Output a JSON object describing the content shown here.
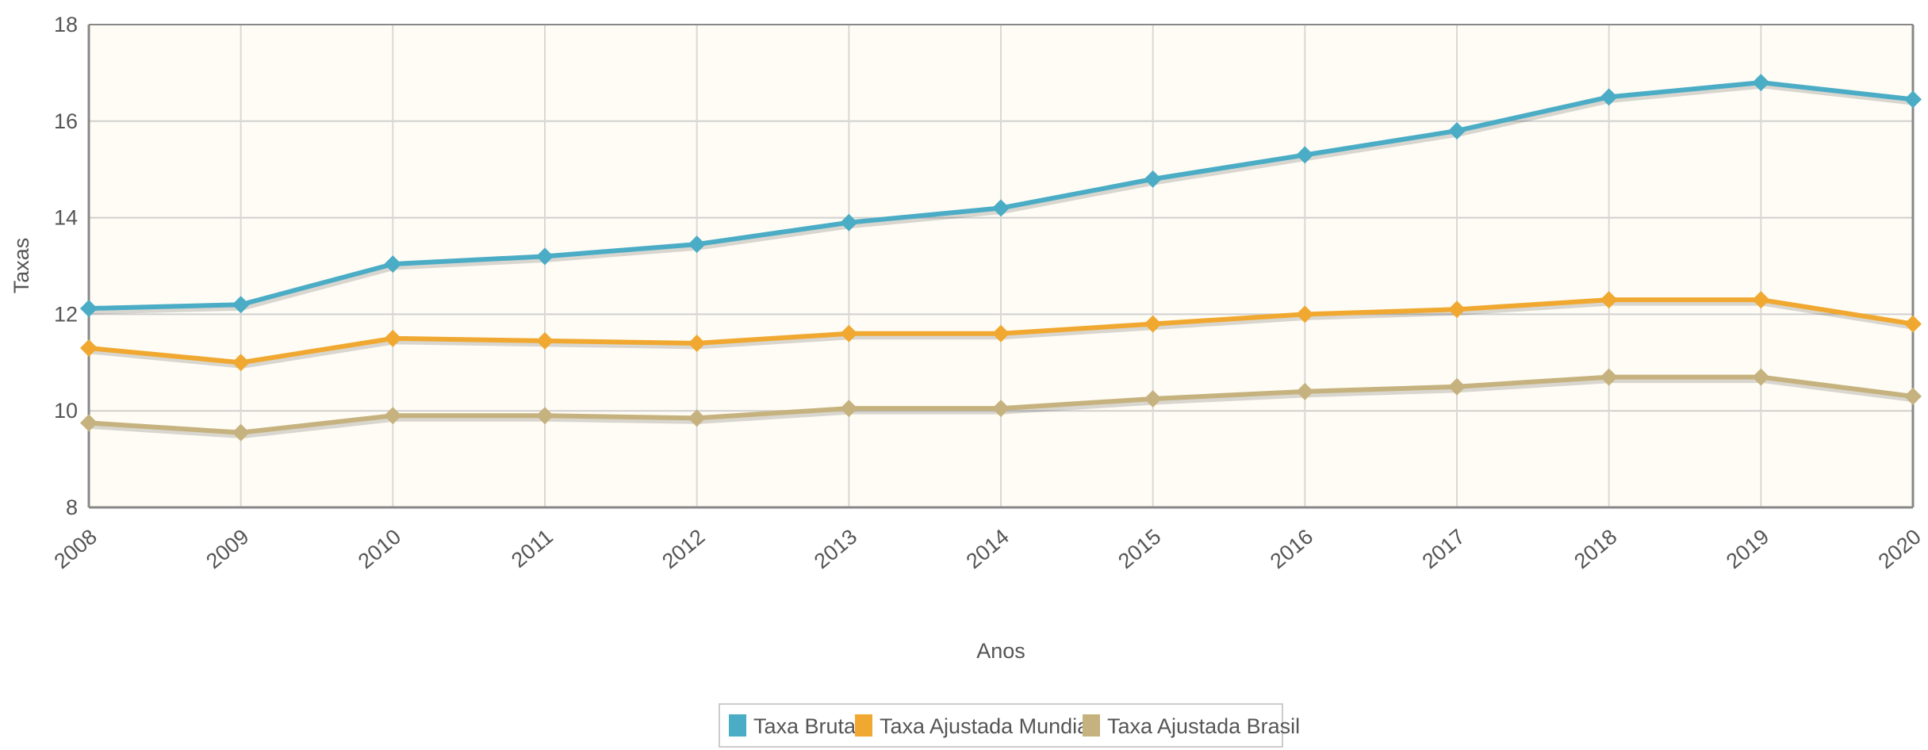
{
  "chart_data": {
    "type": "line",
    "x_label": "Anos",
    "y_label": "Taxas",
    "categories": [
      "2008",
      "2009",
      "2010",
      "2011",
      "2012",
      "2013",
      "2014",
      "2015",
      "2016",
      "2017",
      "2018",
      "2019",
      "2020"
    ],
    "series": [
      {
        "name": "Taxa Bruta",
        "color": "#4bacc6",
        "values": [
          12.12,
          12.2,
          13.04,
          13.2,
          13.45,
          13.9,
          14.2,
          14.8,
          15.3,
          15.8,
          16.5,
          16.8,
          16.45
        ]
      },
      {
        "name": "Taxa Ajustada Mundial",
        "color": "#f0a830",
        "values": [
          11.3,
          11.0,
          11.5,
          11.45,
          11.4,
          11.6,
          11.6,
          11.8,
          12.0,
          12.1,
          12.3,
          12.3,
          11.8
        ]
      },
      {
        "name": "Taxa Ajustada Brasil",
        "color": "#c6b27e",
        "values": [
          9.75,
          9.55,
          9.9,
          9.9,
          9.85,
          10.05,
          10.05,
          10.25,
          10.4,
          10.5,
          10.7,
          10.7,
          10.3
        ]
      }
    ],
    "ylim": [
      8,
      18
    ],
    "yticks": [
      8,
      10,
      12,
      14,
      16,
      18
    ],
    "grid": true,
    "legend": "bottom"
  }
}
